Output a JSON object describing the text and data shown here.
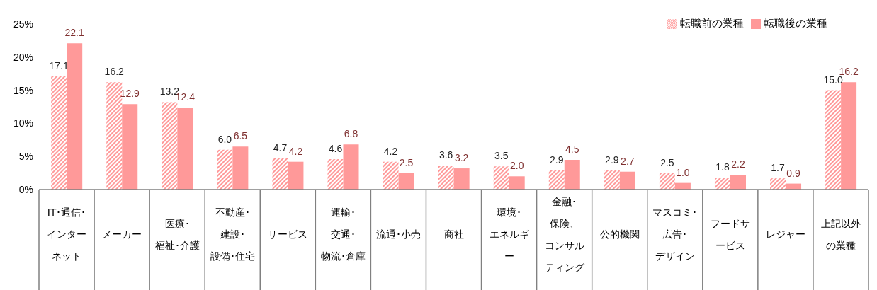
{
  "chart_data": {
    "type": "bar",
    "categories": [
      "IT･通信･インターネット",
      "メーカー",
      "医療･福祉･介護",
      "不動産･建設･設備･住宅",
      "サービス",
      "運輸･交通･物流･倉庫",
      "流通･小売",
      "商社",
      "環境･エネルギー",
      "金融･保険、コンサルティング",
      "公的機関",
      "マスコミ･広告･デザイン",
      "フードサービス",
      "レジャー",
      "上記以外の業種"
    ],
    "series": [
      {
        "name": "転職前の業種",
        "color": "#ff9999",
        "values": [
          17.1,
          16.2,
          13.2,
          6.0,
          4.7,
          4.6,
          4.2,
          3.6,
          3.5,
          2.9,
          2.9,
          2.5,
          1.8,
          1.7,
          15.0
        ],
        "value_labels": [
          "17.1",
          "16.2",
          "13.2",
          "6.0",
          "4.7",
          "4.6",
          "4.2",
          "3.6",
          "3.5",
          "2.9",
          "2.9",
          "2.5",
          "1.8",
          "1.7",
          "15.0"
        ]
      },
      {
        "name": "転職後の業種",
        "color": "#ff9999",
        "values": [
          22.1,
          12.9,
          12.4,
          6.5,
          4.2,
          6.8,
          2.5,
          3.2,
          2.0,
          4.5,
          2.7,
          1.0,
          2.2,
          0.9,
          16.2
        ],
        "value_labels": [
          "22.1",
          "12.9",
          "12.4",
          "6.5",
          "4.2",
          "6.8",
          "2.5",
          "3.2",
          "2.0",
          "4.5",
          "2.7",
          "1.0",
          "2.2",
          "0.9",
          "16.2"
        ]
      }
    ],
    "ylim": [
      0,
      25
    ],
    "yticks": [
      {
        "value": 0,
        "label": "0%"
      },
      {
        "value": 5,
        "label": "5%"
      },
      {
        "value": 10,
        "label": "10%"
      },
      {
        "value": 15,
        "label": "15%"
      },
      {
        "value": 20,
        "label": "20%"
      },
      {
        "value": 25,
        "label": "25%"
      }
    ],
    "grid": false,
    "legend": "top right"
  }
}
